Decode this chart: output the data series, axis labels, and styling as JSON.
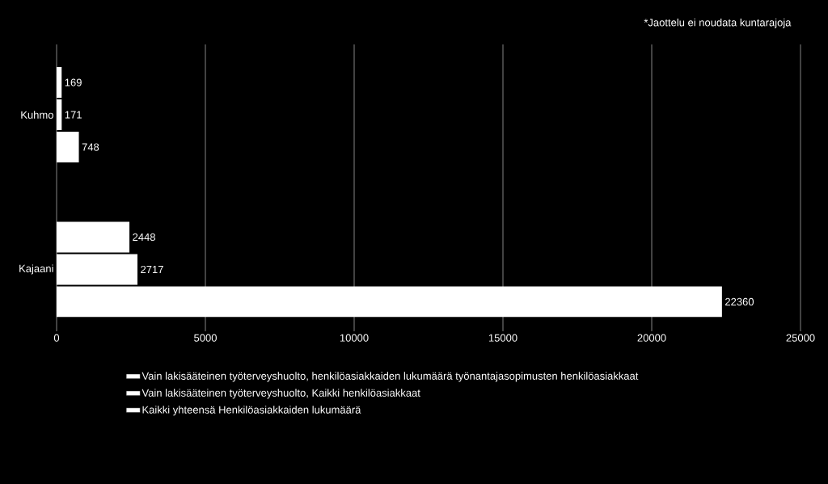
{
  "chart_data": {
    "type": "bar",
    "orientation": "horizontal",
    "categories": [
      "Kuhmo",
      "Kajaani"
    ],
    "series": [
      {
        "name": "Vain lakisääteinen työterveyshuolto, henkilöasiakkaiden lukumäärä työnantajasopimusten henkilöasiakkaat",
        "color": "#ffffff",
        "values": [
          169,
          2448
        ]
      },
      {
        "name": "Vain lakisääteinen työterveyshuolto, Kaikki henkilöasiakkaat",
        "color": "#ffffff",
        "values": [
          171,
          2717
        ]
      },
      {
        "name": "Kaikki yhteensä Henkilöasiakkaiden lukumäärä",
        "color": "#ffffff",
        "values": [
          748,
          22360
        ]
      }
    ],
    "xlim": [
      0,
      25000
    ],
    "xticks": [
      0,
      5000,
      10000,
      15000,
      20000,
      25000
    ],
    "grid": "x",
    "legend": "bottom",
    "data_labels": true,
    "annotations": [
      "*Jaottelu ei noudata kuntarajoja"
    ]
  }
}
